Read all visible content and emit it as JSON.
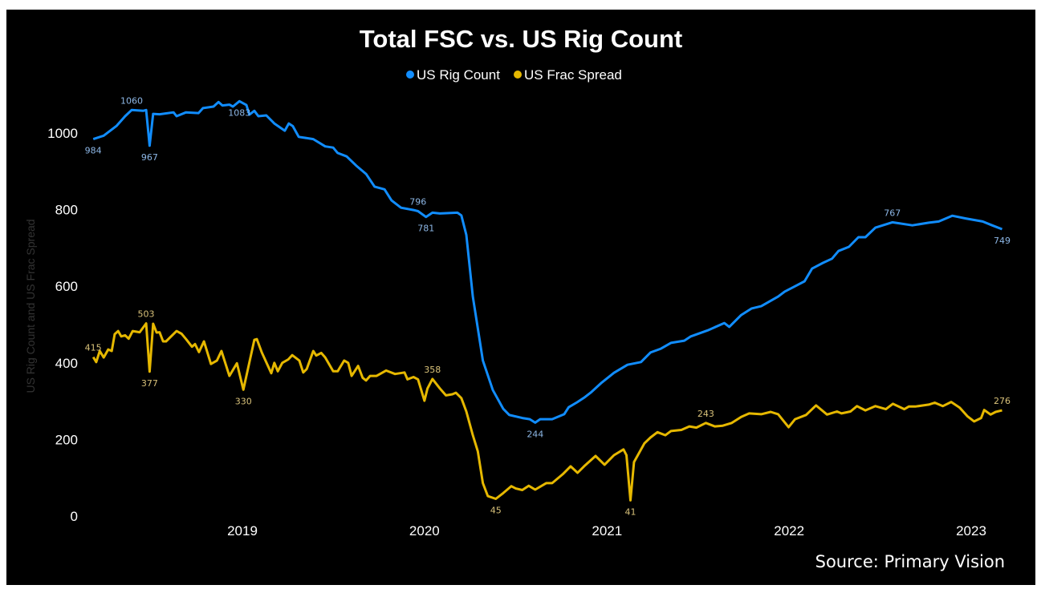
{
  "chart_data": {
    "type": "line",
    "title": "Total FSC vs. US Rig Count",
    "ylabel": "US Rig Count and US Frac Spread",
    "xlabel": "",
    "ylim": [
      0,
      1100
    ],
    "y_ticks": [
      "0",
      "200",
      "400",
      "600",
      "800",
      "1000"
    ],
    "x_ticks": [
      "2019",
      "2020",
      "2021",
      "2022",
      "2023"
    ],
    "grid": false,
    "legend_position": "top-center",
    "source": "Source: Primary Vision",
    "series": [
      {
        "name": "US Rig Count",
        "color": "#118DFF",
        "label_color": "#8DB7E6",
        "points": [
          [
            "2018-03-08",
            984
          ],
          [
            "2018-03-29",
            993
          ],
          [
            "2018-04-24",
            1019
          ],
          [
            "2018-05-11",
            1044
          ],
          [
            "2018-05-24",
            1060
          ],
          [
            "2018-06-16",
            1058
          ],
          [
            "2018-06-22",
            1060
          ],
          [
            "2018-06-29",
            967
          ],
          [
            "2018-07-06",
            1050
          ],
          [
            "2018-07-19",
            1049
          ],
          [
            "2018-08-16",
            1054
          ],
          [
            "2018-08-22",
            1044
          ],
          [
            "2018-09-10",
            1054
          ],
          [
            "2018-10-05",
            1052
          ],
          [
            "2018-10-14",
            1065
          ],
          [
            "2018-11-04",
            1069
          ],
          [
            "2018-11-14",
            1081
          ],
          [
            "2018-11-22",
            1072
          ],
          [
            "2018-12-06",
            1074
          ],
          [
            "2018-12-13",
            1069
          ],
          [
            "2018-12-26",
            1083
          ],
          [
            "2019-01-09",
            1073
          ],
          [
            "2019-01-15",
            1048
          ],
          [
            "2019-01-25",
            1058
          ],
          [
            "2019-02-02",
            1044
          ],
          [
            "2019-02-18",
            1046
          ],
          [
            "2019-03-06",
            1025
          ],
          [
            "2019-03-27",
            1006
          ],
          [
            "2019-04-04",
            1025
          ],
          [
            "2019-04-12",
            1018
          ],
          [
            "2019-04-24",
            990
          ],
          [
            "2019-05-23",
            984
          ],
          [
            "2019-06-16",
            965
          ],
          [
            "2019-07-02",
            962
          ],
          [
            "2019-07-11",
            948
          ],
          [
            "2019-07-29",
            939
          ],
          [
            "2019-08-17",
            915
          ],
          [
            "2019-09-06",
            893
          ],
          [
            "2019-09-23",
            860
          ],
          [
            "2019-10-13",
            853
          ],
          [
            "2019-10-27",
            824
          ],
          [
            "2019-11-15",
            805
          ],
          [
            "2019-12-10",
            799
          ],
          [
            "2019-12-19",
            796
          ],
          [
            "2020-01-04",
            781
          ],
          [
            "2020-01-17",
            792
          ],
          [
            "2020-02-01",
            790
          ],
          [
            "2020-03-07",
            792
          ],
          [
            "2020-03-15",
            785
          ],
          [
            "2020-03-25",
            734
          ],
          [
            "2020-04-07",
            573
          ],
          [
            "2020-04-27",
            406
          ],
          [
            "2020-05-17",
            329
          ],
          [
            "2020-06-07",
            280
          ],
          [
            "2020-06-19",
            264
          ],
          [
            "2020-07-15",
            256
          ],
          [
            "2020-07-30",
            253
          ],
          [
            "2020-08-10",
            244
          ],
          [
            "2020-08-20",
            253
          ],
          [
            "2020-09-13",
            253
          ],
          [
            "2020-10-07",
            266
          ],
          [
            "2020-10-16",
            284
          ],
          [
            "2020-11-02",
            297
          ],
          [
            "2020-11-16",
            309
          ],
          [
            "2020-11-29",
            322
          ],
          [
            "2020-12-20",
            347
          ],
          [
            "2021-01-15",
            374
          ],
          [
            "2021-02-11",
            395
          ],
          [
            "2021-03-10",
            402
          ],
          [
            "2021-03-29",
            427
          ],
          [
            "2021-04-19",
            437
          ],
          [
            "2021-05-09",
            452
          ],
          [
            "2021-06-05",
            458
          ],
          [
            "2021-06-18",
            469
          ],
          [
            "2021-07-22",
            485
          ],
          [
            "2021-08-24",
            504
          ],
          [
            "2021-09-03",
            494
          ],
          [
            "2021-09-27",
            525
          ],
          [
            "2021-10-18",
            542
          ],
          [
            "2021-11-06",
            548
          ],
          [
            "2021-12-10",
            573
          ],
          [
            "2021-12-23",
            586
          ],
          [
            "2022-01-13",
            600
          ],
          [
            "2022-02-01",
            613
          ],
          [
            "2022-02-16",
            646
          ],
          [
            "2022-03-10",
            661
          ],
          [
            "2022-03-28",
            672
          ],
          [
            "2022-04-10",
            692
          ],
          [
            "2022-05-01",
            703
          ],
          [
            "2022-05-20",
            728
          ],
          [
            "2022-06-03",
            728
          ],
          [
            "2022-06-23",
            753
          ],
          [
            "2022-07-27",
            767
          ],
          [
            "2022-09-05",
            759
          ],
          [
            "2022-10-08",
            766
          ],
          [
            "2022-10-28",
            769
          ],
          [
            "2022-11-24",
            784
          ],
          [
            "2022-12-21",
            777
          ],
          [
            "2023-01-24",
            769
          ],
          [
            "2023-02-12",
            759
          ],
          [
            "2023-03-04",
            749
          ]
        ],
        "data_labels": [
          {
            "date": "2018-03-08",
            "value": 984,
            "text": "984",
            "position": "below"
          },
          {
            "date": "2018-05-24",
            "value": 1060,
            "text": "1060",
            "position": "above"
          },
          {
            "date": "2018-06-29",
            "value": 967,
            "text": "967",
            "position": "below"
          },
          {
            "date": "2018-12-26",
            "value": 1083,
            "text": "1083",
            "position": "below"
          },
          {
            "date": "2019-12-19",
            "value": 796,
            "text": "796",
            "position": "above"
          },
          {
            "date": "2020-01-04",
            "value": 781,
            "text": "781",
            "position": "below"
          },
          {
            "date": "2020-08-10",
            "value": 244,
            "text": "244",
            "position": "below"
          },
          {
            "date": "2022-07-27",
            "value": 767,
            "text": "767",
            "position": "above"
          },
          {
            "date": "2023-03-04",
            "value": 749,
            "text": "749",
            "position": "below"
          }
        ]
      },
      {
        "name": "US Frac Spread",
        "color": "#E6B800",
        "label_color": "#D9C27A",
        "points": [
          [
            "2018-03-08",
            415
          ],
          [
            "2018-03-14",
            402
          ],
          [
            "2018-03-21",
            431
          ],
          [
            "2018-03-29",
            414
          ],
          [
            "2018-04-07",
            435
          ],
          [
            "2018-04-14",
            431
          ],
          [
            "2018-04-20",
            475
          ],
          [
            "2018-04-27",
            483
          ],
          [
            "2018-05-03",
            469
          ],
          [
            "2018-05-11",
            472
          ],
          [
            "2018-05-18",
            463
          ],
          [
            "2018-05-26",
            483
          ],
          [
            "2018-06-09",
            480
          ],
          [
            "2018-06-22",
            503
          ],
          [
            "2018-06-29",
            377
          ],
          [
            "2018-07-06",
            502
          ],
          [
            "2018-07-13",
            479
          ],
          [
            "2018-07-19",
            480
          ],
          [
            "2018-07-26",
            456
          ],
          [
            "2018-08-01",
            456
          ],
          [
            "2018-08-22",
            483
          ],
          [
            "2018-09-01",
            476
          ],
          [
            "2018-09-10",
            462
          ],
          [
            "2018-09-22",
            442
          ],
          [
            "2018-09-28",
            449
          ],
          [
            "2018-10-06",
            428
          ],
          [
            "2018-10-16",
            456
          ],
          [
            "2018-10-30",
            397
          ],
          [
            "2018-11-11",
            406
          ],
          [
            "2018-11-20",
            431
          ],
          [
            "2018-12-06",
            366
          ],
          [
            "2018-12-21",
            399
          ],
          [
            "2019-01-03",
            330
          ],
          [
            "2019-01-25",
            460
          ],
          [
            "2019-01-30",
            462
          ],
          [
            "2019-02-09",
            427
          ],
          [
            "2019-02-28",
            373
          ],
          [
            "2019-03-06",
            400
          ],
          [
            "2019-03-13",
            378
          ],
          [
            "2019-03-22",
            400
          ],
          [
            "2019-04-03",
            409
          ],
          [
            "2019-04-11",
            420
          ],
          [
            "2019-04-25",
            406
          ],
          [
            "2019-05-03",
            375
          ],
          [
            "2019-05-10",
            384
          ],
          [
            "2019-05-23",
            431
          ],
          [
            "2019-05-29",
            419
          ],
          [
            "2019-06-08",
            426
          ],
          [
            "2019-06-16",
            414
          ],
          [
            "2019-07-02",
            378
          ],
          [
            "2019-07-11",
            378
          ],
          [
            "2019-07-24",
            406
          ],
          [
            "2019-08-01",
            400
          ],
          [
            "2019-08-08",
            366
          ],
          [
            "2019-08-21",
            392
          ],
          [
            "2019-08-30",
            361
          ],
          [
            "2019-09-06",
            354
          ],
          [
            "2019-09-14",
            366
          ],
          [
            "2019-09-27",
            366
          ],
          [
            "2019-10-16",
            380
          ],
          [
            "2019-11-03",
            371
          ],
          [
            "2019-11-22",
            375
          ],
          [
            "2019-11-28",
            357
          ],
          [
            "2019-12-10",
            363
          ],
          [
            "2019-12-19",
            357
          ],
          [
            "2020-01-01",
            301
          ],
          [
            "2020-01-07",
            333
          ],
          [
            "2020-01-17",
            358
          ],
          [
            "2020-02-01",
            333
          ],
          [
            "2020-02-13",
            315
          ],
          [
            "2020-02-26",
            318
          ],
          [
            "2020-03-04",
            322
          ],
          [
            "2020-03-15",
            308
          ],
          [
            "2020-03-25",
            273
          ],
          [
            "2020-04-07",
            211
          ],
          [
            "2020-04-17",
            169
          ],
          [
            "2020-04-27",
            86
          ],
          [
            "2020-05-07",
            52
          ],
          [
            "2020-05-23",
            45
          ],
          [
            "2020-06-07",
            60
          ],
          [
            "2020-06-23",
            78
          ],
          [
            "2020-07-02",
            72
          ],
          [
            "2020-07-15",
            68
          ],
          [
            "2020-07-28",
            79
          ],
          [
            "2020-08-10",
            69
          ],
          [
            "2020-09-01",
            86
          ],
          [
            "2020-09-13",
            86
          ],
          [
            "2020-10-04",
            109
          ],
          [
            "2020-10-20",
            130
          ],
          [
            "2020-11-03",
            113
          ],
          [
            "2020-11-16",
            130
          ],
          [
            "2020-12-09",
            157
          ],
          [
            "2020-12-27",
            134
          ],
          [
            "2021-01-15",
            159
          ],
          [
            "2021-02-03",
            174
          ],
          [
            "2021-02-09",
            159
          ],
          [
            "2021-02-17",
            41
          ],
          [
            "2021-02-24",
            141
          ],
          [
            "2021-03-17",
            190
          ],
          [
            "2021-03-29",
            205
          ],
          [
            "2021-04-12",
            219
          ],
          [
            "2021-04-28",
            211
          ],
          [
            "2021-05-09",
            222
          ],
          [
            "2021-05-30",
            225
          ],
          [
            "2021-06-15",
            234
          ],
          [
            "2021-06-29",
            231
          ],
          [
            "2021-07-18",
            243
          ],
          [
            "2021-08-05",
            234
          ],
          [
            "2021-08-21",
            236
          ],
          [
            "2021-09-08",
            243
          ],
          [
            "2021-09-27",
            259
          ],
          [
            "2021-10-13",
            268
          ],
          [
            "2021-11-06",
            266
          ],
          [
            "2021-11-25",
            272
          ],
          [
            "2021-12-10",
            266
          ],
          [
            "2021-12-31",
            232
          ],
          [
            "2022-01-13",
            253
          ],
          [
            "2022-02-04",
            264
          ],
          [
            "2022-02-24",
            289
          ],
          [
            "2022-03-18",
            265
          ],
          [
            "2022-04-07",
            273
          ],
          [
            "2022-04-16",
            268
          ],
          [
            "2022-05-04",
            273
          ],
          [
            "2022-05-17",
            287
          ],
          [
            "2022-06-03",
            276
          ],
          [
            "2022-06-23",
            287
          ],
          [
            "2022-07-14",
            279
          ],
          [
            "2022-07-28",
            293
          ],
          [
            "2022-08-20",
            279
          ],
          [
            "2022-08-29",
            286
          ],
          [
            "2022-09-11",
            286
          ],
          [
            "2022-10-08",
            291
          ],
          [
            "2022-10-20",
            296
          ],
          [
            "2022-11-05",
            287
          ],
          [
            "2022-11-22",
            298
          ],
          [
            "2022-12-09",
            283
          ],
          [
            "2022-12-25",
            260
          ],
          [
            "2023-01-07",
            247
          ],
          [
            "2023-01-21",
            256
          ],
          [
            "2023-01-27",
            277
          ],
          [
            "2023-02-09",
            265
          ],
          [
            "2023-02-19",
            272
          ],
          [
            "2023-03-04",
            276
          ]
        ],
        "data_labels": [
          {
            "date": "2018-03-08",
            "value": 415,
            "text": "415",
            "position": "above"
          },
          {
            "date": "2018-06-22",
            "value": 503,
            "text": "503",
            "position": "above"
          },
          {
            "date": "2018-06-29",
            "value": 377,
            "text": "377",
            "position": "below"
          },
          {
            "date": "2019-01-03",
            "value": 330,
            "text": "330",
            "position": "below"
          },
          {
            "date": "2020-01-17",
            "value": 358,
            "text": "358",
            "position": "above"
          },
          {
            "date": "2020-05-23",
            "value": 45,
            "text": "45",
            "position": "below"
          },
          {
            "date": "2021-02-17",
            "value": 41,
            "text": "41",
            "position": "below"
          },
          {
            "date": "2021-07-18",
            "value": 243,
            "text": "243",
            "position": "above"
          },
          {
            "date": "2023-03-04",
            "value": 276,
            "text": "276",
            "position": "above"
          }
        ]
      }
    ]
  }
}
